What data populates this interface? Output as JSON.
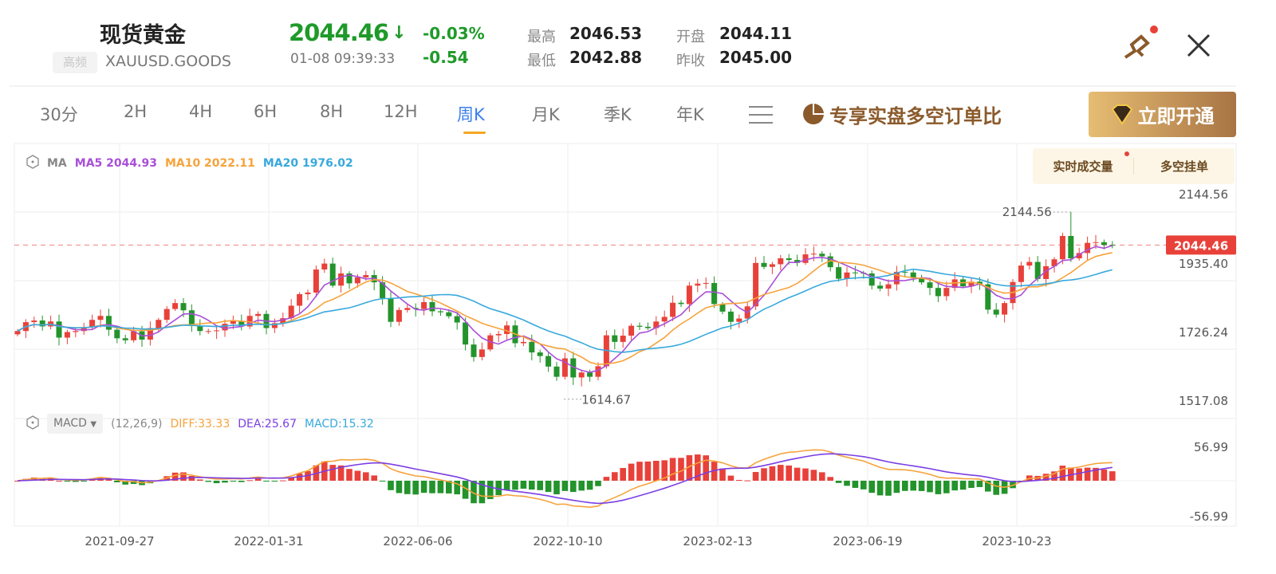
{
  "header": {
    "title": "现货黄金",
    "badge": "高频",
    "symbol": "XAUUSD.GOODS",
    "price": "2044.46",
    "timestamp": "01-08 09:39:33",
    "change_pct": "-0.03%",
    "change": "-0.54",
    "high_label": "最高",
    "high": "2046.53",
    "low_label": "最低",
    "low": "2042.88",
    "open_label": "开盘",
    "open": "2044.11",
    "prev_close_label": "昨收",
    "prev_close": "2045.00"
  },
  "tabs": [
    {
      "label": "30分"
    },
    {
      "label": "2H"
    },
    {
      "label": "4H"
    },
    {
      "label": "6H"
    },
    {
      "label": "8H"
    },
    {
      "label": "12H"
    },
    {
      "label": "周K",
      "active": true
    },
    {
      "label": "月K"
    },
    {
      "label": "季K"
    },
    {
      "label": "年K"
    }
  ],
  "promo": {
    "label": "专享实盘多空订单比",
    "button": "立即开通"
  },
  "toggles": {
    "volume": "实时成交量",
    "orders": "多空挂单"
  },
  "ma_legend": {
    "name": "MA",
    "ma5": "MA5 2044.93",
    "ma10": "MA10 2022.11",
    "ma20": "MA20 1976.02"
  },
  "macd_legend": {
    "name": "MACD",
    "params": "(12,26,9)",
    "diff": "DIFF:33.33",
    "dea": "DEA:25.67",
    "macd": "MACD:15.32"
  },
  "colors": {
    "up": "#e8413a",
    "down": "#23932b",
    "ma5": "#a94fd8",
    "ma10": "#f6a33b",
    "ma20": "#38a9dc",
    "dea": "#7a3fe3",
    "diff": "#f6a33b"
  },
  "chart_data": {
    "type": "candlestick",
    "interval": "weekly",
    "price_axis": {
      "ticks": [
        "2144.56",
        "1935.40",
        "1726.24",
        "1517.08"
      ],
      "range": [
        1517.08,
        2144.56
      ]
    },
    "macd_axis": {
      "ticks": [
        "56.99",
        "-56.99"
      ],
      "range": [
        -56.99,
        56.99
      ]
    },
    "x_ticks": [
      "2021-09-27",
      "2022-01-31",
      "2022-06-06",
      "2022-10-10",
      "2023-02-13",
      "2023-06-19",
      "2023-10-23"
    ],
    "first_week": "2021-06-28",
    "close": [
      1783,
      1810,
      1815,
      1797,
      1812,
      1763,
      1780,
      1783,
      1795,
      1817,
      1829,
      1787,
      1761,
      1755,
      1782,
      1757,
      1792,
      1817,
      1850,
      1868,
      1846,
      1798,
      1783,
      1783,
      1785,
      1805,
      1814,
      1797,
      1829,
      1835,
      1792,
      1807,
      1822,
      1860,
      1895,
      1900,
      1970,
      1988,
      1921,
      1958,
      1928,
      1946,
      1953,
      1931,
      1883,
      1811,
      1847,
      1853,
      1850,
      1871,
      1843,
      1840,
      1828,
      1809,
      1742,
      1704,
      1727,
      1770,
      1774,
      1800,
      1746,
      1750,
      1718,
      1707,
      1675,
      1644,
      1700,
      1642,
      1657,
      1644,
      1676,
      1770,
      1750,
      1769,
      1799,
      1796,
      1792,
      1812,
      1826,
      1869,
      1865,
      1921,
      1927,
      1929,
      1865,
      1842,
      1811,
      1821,
      1858,
      1990,
      1978,
      1986,
      2004,
      1999,
      1990,
      2016,
      2018,
      2010,
      1977,
      1942,
      1961,
      1960,
      1958,
      1921,
      1912,
      1925,
      1963,
      1961,
      1944,
      1931,
      1914,
      1889,
      1914,
      1940,
      1919,
      1933,
      1925,
      1848,
      1833,
      1868,
      1932,
      1982,
      1993,
      1941,
      1980,
      2001,
      2072,
      2004,
      2020,
      2051,
      2053,
      2045,
      2044.46
    ],
    "current_price": "2044.46",
    "max_high": {
      "label": "2144.56",
      "index": 127
    },
    "min_low": {
      "label": "1614.67",
      "index": 68
    }
  }
}
